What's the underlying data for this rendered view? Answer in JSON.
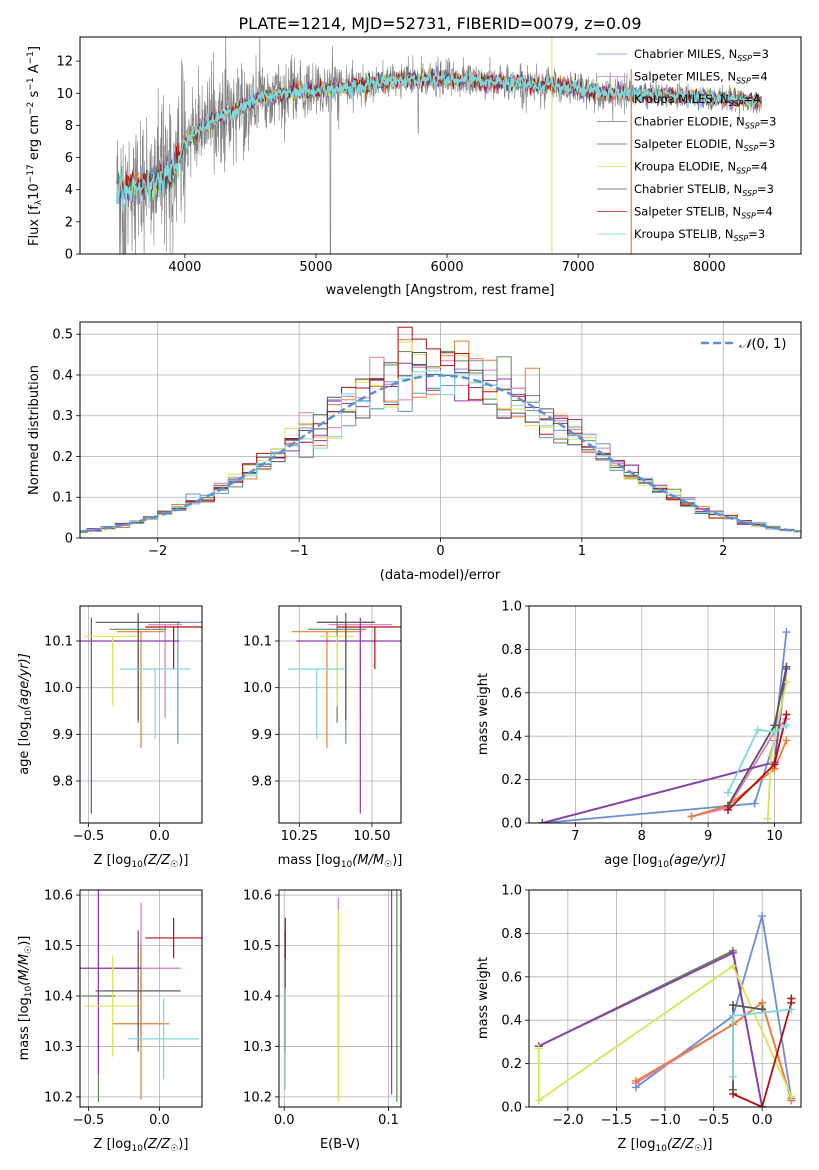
{
  "figure_title": "PLATE=1214, MJD=52731, FIBERID=0079, z=0.09",
  "models": [
    {
      "label": "Chabrier MILES, N",
      "nssp": "=3",
      "color": "#6a8fd6"
    },
    {
      "label": "Salpeter MILES, N",
      "nssp": "=4",
      "color": "#e377c2"
    },
    {
      "label": "Kroupa MILES, N",
      "nssp": "=4",
      "color": "#ed7d31"
    },
    {
      "label": "Chabrier ELODIE, N",
      "nssp": "=3",
      "color": "#5a8a5a"
    },
    {
      "label": "Salpeter ELODIE, N",
      "nssp": "=3",
      "color": "#8e3ab0"
    },
    {
      "label": "Kroupa ELODIE, N",
      "nssp": "=4",
      "color": "#d9e45a"
    },
    {
      "label": "Chabrier STELIB, N",
      "nssp": "=3",
      "color": "#555555"
    },
    {
      "label": "Salpeter STELIB, N",
      "nssp": "=4",
      "color": "#b01010"
    },
    {
      "label": "Kroupa STELIB, N",
      "nssp": "=3",
      "color": "#7fd8dc"
    }
  ],
  "legend_sub": "SSP",
  "chart_data": [
    {
      "id": "spectrum",
      "type": "line",
      "xlabel": "wavelength [Angstrom, rest frame]",
      "ylabel_pre": "Flux [f",
      "ylabel_mid": "10",
      "ylabel_exp1": "−17",
      "ylabel_post": " erg cm",
      "ylabel_exp2": "−2",
      "ylabel_s": " s",
      "ylabel_exp3": "−1",
      "ylabel_end": " A",
      "ylabel_exp4": "−1",
      "ylabel_close": "]",
      "xlim": [
        3200,
        8700
      ],
      "ylim": [
        0,
        13.5
      ],
      "xticks": [
        4000,
        5000,
        6000,
        7000,
        8000
      ],
      "yticks": [
        0,
        2,
        4,
        6,
        8,
        10,
        12
      ],
      "continuum": [
        [
          3480,
          4.0
        ],
        [
          3800,
          4.5
        ],
        [
          3900,
          5.0
        ],
        [
          4000,
          7.0
        ],
        [
          4200,
          8.3
        ],
        [
          4400,
          9.0
        ],
        [
          4600,
          9.8
        ],
        [
          4900,
          10.1
        ],
        [
          5200,
          10.3
        ],
        [
          5600,
          10.8
        ],
        [
          6000,
          10.9
        ],
        [
          6400,
          10.7
        ],
        [
          6800,
          10.5
        ],
        [
          7000,
          10.3
        ],
        [
          7200,
          10.0
        ],
        [
          7400,
          10.0
        ],
        [
          7800,
          9.8
        ],
        [
          8200,
          9.6
        ],
        [
          8400,
          9.4
        ]
      ]
    },
    {
      "id": "residuals",
      "type": "step-histogram",
      "xlabel": "(data-model)/error",
      "ylabel": "Normed distribution",
      "xlim": [
        -2.55,
        2.55
      ],
      "ylim": [
        0,
        0.53
      ],
      "xticks": [
        -2,
        -1,
        0,
        1,
        2
      ],
      "xtick_labels": [
        "−2",
        "−1",
        "0",
        "1",
        "2"
      ],
      "yticks": [
        0.0,
        0.1,
        0.2,
        0.3,
        0.4,
        0.5
      ],
      "bin_width": 0.1,
      "normal_curve_label": "(0, 1)",
      "normal_curve_color": "#5b8fd6"
    },
    {
      "id": "age-vs-Z",
      "type": "errorbar",
      "xlabel": "Z [log",
      "xlabel_sub": "10",
      "xlabel_rest": "(Z/Z",
      "xlabel_sun": "☉",
      "xlabel_end": ")]",
      "ylabel": "age  [log",
      "ylabel_sub": "10",
      "ylabel_rest": "(age/yr)]",
      "xlim": [
        -0.56,
        0.3
      ],
      "ylim": [
        9.71,
        10.175
      ],
      "xticks": [
        -0.5,
        0.0
      ],
      "xtick_labels": [
        "−0.5",
        "0.0"
      ],
      "yticks": [
        9.8,
        9.9,
        10.0,
        10.1
      ],
      "ytick_labels": [
        "9.8",
        "9.9",
        "10.0",
        "10.1"
      ],
      "points": [
        {
          "m": 0,
          "x": 0.13,
          "xe": 0.17,
          "y": 10.14,
          "ye_lo": 0.26,
          "ye_hi": 0.0
        },
        {
          "m": 1,
          "x": 0.04,
          "xe": 0.12,
          "y": 10.135,
          "ye_lo": 0.2,
          "ye_hi": 0.0
        },
        {
          "m": 2,
          "x": -0.13,
          "xe": 0.17,
          "y": 10.12,
          "ye_lo": 0.25,
          "ye_hi": 0.0
        },
        {
          "m": 3,
          "x": -0.15,
          "xe": 0.2,
          "y": 10.125,
          "ye_lo": 0.2,
          "ye_hi": 0.03
        },
        {
          "m": 4,
          "x": -0.48,
          "xe": 0.62,
          "y": 10.1,
          "ye_lo": 0.37,
          "ye_hi": 0.05
        },
        {
          "m": 5,
          "x": -0.33,
          "xe": 0.2,
          "y": 10.11,
          "ye_lo": 0.15,
          "ye_hi": 0.0
        },
        {
          "m": 6,
          "x": -0.15,
          "xe": 0.3,
          "y": 10.14,
          "ye_lo": 0.21,
          "ye_hi": 0.02
        },
        {
          "m": 7,
          "x": 0.1,
          "xe": 0.2,
          "y": 10.13,
          "ye_lo": 0.09,
          "ye_hi": 0.0
        },
        {
          "m": 8,
          "x": -0.03,
          "xe": 0.25,
          "y": 10.04,
          "ye_lo": 0.15,
          "ye_hi": 0.0
        }
      ]
    },
    {
      "id": "age-vs-mass",
      "type": "errorbar",
      "xlabel": "mass [log",
      "xlabel_sub": "10",
      "xlabel_rest": "(M/M",
      "xlabel_sun": "☉",
      "xlabel_end": ")]",
      "xlim": [
        10.18,
        10.6
      ],
      "ylim": [
        9.71,
        10.175
      ],
      "xticks": [
        10.25,
        10.5
      ],
      "xtick_labels": [
        "10.25",
        "10.50"
      ],
      "yticks": [
        9.8,
        9.9,
        10.0,
        10.1
      ],
      "ytick_labels": [
        "9.8",
        "9.9",
        "10.0",
        "10.1"
      ],
      "points": [
        {
          "m": 0,
          "x": 10.41,
          "xe": 0.1,
          "y": 10.14,
          "ye_lo": 0.26,
          "ye_hi": 0.0
        },
        {
          "m": 1,
          "x": 10.46,
          "xe": 0.11,
          "y": 10.135,
          "ye_lo": 0.2,
          "ye_hi": 0.0
        },
        {
          "m": 2,
          "x": 10.345,
          "xe": 0.12,
          "y": 10.12,
          "ye_lo": 0.25,
          "ye_hi": 0.0
        },
        {
          "m": 3,
          "x": 10.38,
          "xe": 0.1,
          "y": 10.125,
          "ye_lo": 0.2,
          "ye_hi": 0.03
        },
        {
          "m": 4,
          "x": 10.46,
          "xe": 0.22,
          "y": 10.1,
          "ye_lo": 0.37,
          "ye_hi": 0.05
        },
        {
          "m": 5,
          "x": 10.38,
          "xe": 0.06,
          "y": 10.11,
          "ye_lo": 0.15,
          "ye_hi": 0.0
        },
        {
          "m": 6,
          "x": 10.41,
          "xe": 0.1,
          "y": 10.14,
          "ye_lo": 0.21,
          "ye_hi": 0.02
        },
        {
          "m": 7,
          "x": 10.51,
          "xe": 0.13,
          "y": 10.13,
          "ye_lo": 0.09,
          "ye_hi": 0.0
        },
        {
          "m": 8,
          "x": 10.31,
          "xe": 0.1,
          "y": 10.04,
          "ye_lo": 0.15,
          "ye_hi": 0.0
        }
      ]
    },
    {
      "id": "weight-vs-age",
      "type": "line",
      "xlabel": "age  [log",
      "xlabel_sub": "10",
      "xlabel_rest": "(age/yr)]",
      "ylabel": "mass weight",
      "xlim": [
        6.3,
        10.4
      ],
      "ylim": [
        0,
        1.0
      ],
      "xticks": [
        7,
        8,
        9,
        10
      ],
      "xtick_labels": [
        "7",
        "8",
        "9",
        "10"
      ],
      "yticks": [
        0.0,
        0.2,
        0.4,
        0.6,
        0.8,
        1.0
      ],
      "ytick_labels": [
        "0.0",
        "0.2",
        "0.4",
        "0.6",
        "0.8",
        "1.0"
      ],
      "series": [
        {
          "m": 0,
          "x": [
            6.5,
            9.7,
            10.0,
            10.18
          ],
          "y": [
            0.0,
            0.09,
            0.38,
            0.88
          ]
        },
        {
          "m": 1,
          "x": [
            8.75,
            9.3,
            10.0,
            10.18
          ],
          "y": [
            0.03,
            0.07,
            0.42,
            0.48
          ]
        },
        {
          "m": 2,
          "x": [
            8.75,
            9.3,
            10.0,
            10.18
          ],
          "y": [
            0.03,
            0.08,
            0.25,
            0.38
          ]
        },
        {
          "m": 3,
          "x": [
            6.5,
            10.0,
            10.18
          ],
          "y": [
            0.0,
            0.28,
            0.72
          ]
        },
        {
          "m": 4,
          "x": [
            6.5,
            10.0,
            10.18
          ],
          "y": [
            0.0,
            0.28,
            0.71
          ]
        },
        {
          "m": 5,
          "x": [
            9.9,
            9.95,
            10.18
          ],
          "y": [
            0.02,
            0.31,
            0.65
          ]
        },
        {
          "m": 6,
          "x": [
            9.3,
            10.0,
            10.18
          ],
          "y": [
            0.08,
            0.45,
            0.72
          ]
        },
        {
          "m": 7,
          "x": [
            9.3,
            10.0,
            10.18
          ],
          "y": [
            0.06,
            0.27,
            0.5
          ]
        },
        {
          "m": 8,
          "x": [
            9.3,
            9.75,
            10.0,
            10.18
          ],
          "y": [
            0.14,
            0.43,
            0.42,
            0.45
          ]
        }
      ]
    },
    {
      "id": "mass-vs-Z",
      "type": "errorbar",
      "xlabel": "Z [log",
      "xlabel_sub": "10",
      "xlabel_rest": "(Z/Z",
      "xlabel_sun": "☉",
      "xlabel_end": ")]",
      "ylabel": "mass [log",
      "ylabel_sub": "10",
      "ylabel_rest": "(M/M",
      "ylabel_sun": "☉",
      "ylabel_end": ")]",
      "xlim": [
        -0.56,
        0.3
      ],
      "ylim": [
        10.18,
        10.61
      ],
      "xticks": [
        -0.5,
        0.0
      ],
      "xtick_labels": [
        "−0.5",
        "0.0"
      ],
      "yticks": [
        10.2,
        10.3,
        10.4,
        10.5,
        10.6
      ],
      "ytick_labels": [
        "10.2",
        "10.3",
        "10.4",
        "10.5",
        "10.6"
      ],
      "points": [
        {
          "m": 0,
          "x": -0.13,
          "xe": 0.26,
          "y": 10.41,
          "ye": 0.1
        },
        {
          "m": 1,
          "x": -0.13,
          "xe": 0.28,
          "y": 10.455,
          "ye": 0.13
        },
        {
          "m": 2,
          "x": -0.13,
          "xe": 0.2,
          "y": 10.345,
          "ye": 0.15
        },
        {
          "m": 3,
          "x": -0.43,
          "xe": 0.12,
          "y": 10.4,
          "ye": 0.21
        },
        {
          "m": 4,
          "x": -0.43,
          "xe": 0.3,
          "y": 10.455,
          "ye": 0.21
        },
        {
          "m": 5,
          "x": -0.33,
          "xe": 0.2,
          "y": 10.38,
          "ye": 0.1
        },
        {
          "m": 6,
          "x": -0.15,
          "xe": 0.3,
          "y": 10.41,
          "ye": 0.12
        },
        {
          "m": 7,
          "x": 0.1,
          "xe": 0.2,
          "y": 10.515,
          "ye": 0.04
        },
        {
          "m": 8,
          "x": 0.03,
          "xe": 0.25,
          "y": 10.315,
          "ye": 0.08
        }
      ]
    },
    {
      "id": "mass-vs-EBV",
      "type": "errorbar",
      "xlabel": "E(B-V)",
      "xlim": [
        -0.005,
        0.112
      ],
      "ylim": [
        10.18,
        10.61
      ],
      "xticks": [
        0.0,
        0.1
      ],
      "xtick_labels": [
        "0.0",
        "0.1"
      ],
      "yticks": [
        10.2,
        10.3,
        10.4,
        10.5,
        10.6
      ],
      "ytick_labels": [
        "10.2",
        "10.3",
        "10.4",
        "10.5",
        "10.6"
      ],
      "points": [
        {
          "m": 0,
          "x": 0.052,
          "y": 10.41,
          "ye": 0.11
        },
        {
          "m": 1,
          "x": 0.052,
          "y": 10.455,
          "ye": 0.14
        },
        {
          "m": 2,
          "x": 0.052,
          "y": 10.345,
          "ye": 0.15
        },
        {
          "m": 3,
          "x": 0.108,
          "y": 10.4,
          "ye": 0.21
        },
        {
          "m": 4,
          "x": 0.103,
          "y": 10.455,
          "ye": 0.25
        },
        {
          "m": 5,
          "x": 0.052,
          "y": 10.38,
          "ye": 0.19
        },
        {
          "m": 6,
          "x": 0.001,
          "y": 10.41,
          "ye": 0.12
        },
        {
          "m": 7,
          "x": 0.001,
          "y": 10.515,
          "ye": 0.04
        },
        {
          "m": 8,
          "x": 0.001,
          "y": 10.315,
          "ye": 0.1
        }
      ]
    },
    {
      "id": "weight-vs-Z",
      "type": "line",
      "xlabel": "Z [log",
      "xlabel_sub": "10",
      "xlabel_rest": "(Z/Z",
      "xlabel_sun": "☉",
      "xlabel_end": ")]",
      "ylabel": "mass weight",
      "xlim": [
        -2.4,
        0.4
      ],
      "ylim": [
        0,
        1.0
      ],
      "xticks": [
        -2.0,
        -1.5,
        -1.0,
        -0.5,
        0.0
      ],
      "xtick_labels": [
        "−2.0",
        "−1.5",
        "−1.0",
        "−0.5",
        "0.0"
      ],
      "yticks": [
        0.0,
        0.2,
        0.4,
        0.6,
        0.8,
        1.0
      ],
      "ytick_labels": [
        "0.0",
        "0.2",
        "0.4",
        "0.6",
        "0.8",
        "1.0"
      ],
      "series": [
        {
          "m": 0,
          "x": [
            -1.3,
            -0.3,
            0.0,
            0.3
          ],
          "y": [
            0.09,
            0.42,
            0.88,
            0.04
          ]
        },
        {
          "m": 1,
          "x": [
            -1.3,
            -0.3,
            0.0,
            0.3
          ],
          "y": [
            0.11,
            0.38,
            0.48,
            0.03
          ]
        },
        {
          "m": 2,
          "x": [
            -1.3,
            -0.3,
            0.0,
            0.3
          ],
          "y": [
            0.12,
            0.38,
            0.48,
            0.03
          ]
        },
        {
          "m": 3,
          "x": [
            -2.3,
            -0.3,
            0.0
          ],
          "y": [
            0.28,
            0.72,
            0.0
          ]
        },
        {
          "m": 4,
          "x": [
            -2.3,
            -0.3,
            0.0
          ],
          "y": [
            0.28,
            0.71,
            0.0
          ]
        },
        {
          "m": 5,
          "x": [
            -2.3,
            -2.3,
            -0.3,
            0.3
          ],
          "y": [
            0.27,
            0.03,
            0.65,
            0.05
          ]
        },
        {
          "m": 6,
          "x": [
            -0.3,
            -0.3,
            0.0
          ],
          "y": [
            0.08,
            0.47,
            0.45
          ]
        },
        {
          "m": 7,
          "x": [
            -0.3,
            0.0,
            0.3,
            0.3
          ],
          "y": [
            0.06,
            0.0,
            0.48,
            0.5
          ]
        },
        {
          "m": 8,
          "x": [
            -0.3,
            -0.3,
            0.3
          ],
          "y": [
            0.14,
            0.42,
            0.45
          ]
        }
      ]
    }
  ]
}
